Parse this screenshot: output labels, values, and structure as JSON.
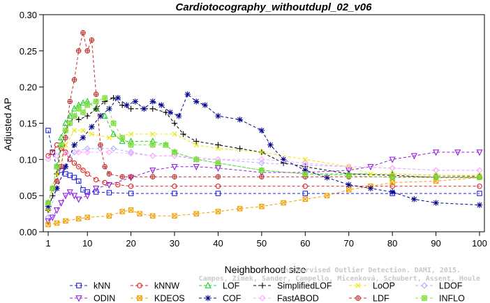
{
  "chart_data": {
    "type": "line",
    "title": "Cardiotocography_withoutdupl_02_v06",
    "xlabel": "Neighborhood size",
    "ylabel": "Adjusted AP",
    "xlim": [
      1,
      100
    ],
    "ylim": [
      0,
      0.3
    ],
    "x_ticks": [
      1,
      10,
      20,
      30,
      40,
      50,
      60,
      70,
      80,
      90,
      100
    ],
    "y_ticks": [
      "0.00",
      "0.05",
      "0.10",
      "0.15",
      "0.20",
      "0.25",
      "0.30"
    ],
    "grid": false,
    "legend_position": "bottom",
    "watermark": [
      "Campos, Zimek, Sander, Campello, Micenková, Schubert, Assent, Houle",
      "Unsupervised Outlier Detection. DAMI, 2015."
    ],
    "series": [
      {
        "name": "kNN",
        "color": "#2020e0",
        "marker": "square",
        "points": [
          [
            1,
            0.14
          ],
          [
            2,
            0.11
          ],
          [
            3,
            0.09
          ],
          [
            4,
            0.085
          ],
          [
            5,
            0.08
          ],
          [
            6,
            0.078
          ],
          [
            7,
            0.075
          ],
          [
            8,
            0.07
          ],
          [
            9,
            0.058
          ],
          [
            10,
            0.055
          ],
          [
            12,
            0.055
          ],
          [
            15,
            0.054
          ],
          [
            20,
            0.053
          ],
          [
            30,
            0.053
          ],
          [
            40,
            0.053
          ],
          [
            60,
            0.053
          ],
          [
            80,
            0.053
          ],
          [
            100,
            0.053
          ]
        ]
      },
      {
        "name": "kNNW",
        "color": "#e02020",
        "marker": "circle",
        "points": [
          [
            1,
            0.105
          ],
          [
            2,
            0.11
          ],
          [
            3,
            0.12
          ],
          [
            4,
            0.115
          ],
          [
            5,
            0.11
          ],
          [
            6,
            0.1
          ],
          [
            7,
            0.095
          ],
          [
            8,
            0.09
          ],
          [
            9,
            0.085
          ],
          [
            10,
            0.08
          ],
          [
            12,
            0.072
          ],
          [
            14,
            0.068
          ],
          [
            17,
            0.065
          ],
          [
            20,
            0.063
          ],
          [
            30,
            0.063
          ],
          [
            40,
            0.063
          ],
          [
            60,
            0.063
          ],
          [
            80,
            0.063
          ],
          [
            100,
            0.063
          ]
        ]
      },
      {
        "name": "LOF",
        "color": "#20d020",
        "marker": "triangle",
        "points": [
          [
            1,
            0.04
          ],
          [
            2,
            0.06
          ],
          [
            3,
            0.09
          ],
          [
            4,
            0.13
          ],
          [
            5,
            0.15
          ],
          [
            6,
            0.16
          ],
          [
            7,
            0.17
          ],
          [
            8,
            0.175
          ],
          [
            9,
            0.178
          ],
          [
            10,
            0.18
          ],
          [
            12,
            0.17
          ],
          [
            14,
            0.16
          ],
          [
            16,
            0.135
          ],
          [
            18,
            0.125
          ],
          [
            20,
            0.125
          ],
          [
            25,
            0.125
          ],
          [
            28,
            0.12
          ],
          [
            30,
            0.11
          ],
          [
            35,
            0.1
          ],
          [
            40,
            0.095
          ],
          [
            50,
            0.085
          ],
          [
            60,
            0.08
          ],
          [
            70,
            0.08
          ],
          [
            80,
            0.08
          ],
          [
            90,
            0.078
          ],
          [
            100,
            0.077
          ]
        ]
      },
      {
        "name": "SimplifiedLOF",
        "color": "#000000",
        "marker": "plus",
        "points": [
          [
            1,
            0.03
          ],
          [
            2,
            0.05
          ],
          [
            3,
            0.08
          ],
          [
            4,
            0.12
          ],
          [
            5,
            0.14
          ],
          [
            6,
            0.15
          ],
          [
            7,
            0.16
          ],
          [
            8,
            0.155
          ],
          [
            10,
            0.16
          ],
          [
            12,
            0.17
          ],
          [
            14,
            0.18
          ],
          [
            16,
            0.185
          ],
          [
            18,
            0.175
          ],
          [
            20,
            0.17
          ],
          [
            25,
            0.17
          ],
          [
            28,
            0.165
          ],
          [
            30,
            0.15
          ],
          [
            32,
            0.135
          ],
          [
            35,
            0.125
          ],
          [
            40,
            0.12
          ],
          [
            45,
            0.115
          ],
          [
            50,
            0.11
          ],
          [
            55,
            0.095
          ],
          [
            60,
            0.09
          ],
          [
            70,
            0.08
          ],
          [
            80,
            0.078
          ],
          [
            90,
            0.075
          ],
          [
            100,
            0.075
          ]
        ]
      },
      {
        "name": "LoOP",
        "color": "#e8e800",
        "marker": "x",
        "points": [
          [
            1,
            0.03
          ],
          [
            3,
            0.08
          ],
          [
            5,
            0.12
          ],
          [
            7,
            0.14
          ],
          [
            9,
            0.14
          ],
          [
            11,
            0.135
          ],
          [
            15,
            0.13
          ],
          [
            20,
            0.135
          ],
          [
            25,
            0.135
          ],
          [
            30,
            0.135
          ],
          [
            35,
            0.12
          ],
          [
            40,
            0.115
          ],
          [
            50,
            0.11
          ],
          [
            60,
            0.1
          ],
          [
            70,
            0.09
          ],
          [
            75,
            0.08
          ],
          [
            80,
            0.08
          ],
          [
            90,
            0.078
          ],
          [
            100,
            0.078
          ]
        ]
      },
      {
        "name": "LDOF",
        "color": "#b0b0ff",
        "marker": "diamond",
        "points": [
          [
            1,
            0.02
          ],
          [
            3,
            0.06
          ],
          [
            5,
            0.09
          ],
          [
            7,
            0.11
          ],
          [
            10,
            0.115
          ],
          [
            13,
            0.115
          ],
          [
            16,
            0.115
          ],
          [
            20,
            0.11
          ],
          [
            25,
            0.105
          ],
          [
            30,
            0.105
          ],
          [
            35,
            0.1
          ],
          [
            40,
            0.1
          ],
          [
            50,
            0.095
          ],
          [
            60,
            0.092
          ],
          [
            70,
            0.09
          ],
          [
            80,
            0.088
          ],
          [
            90,
            0.085
          ],
          [
            100,
            0.085
          ]
        ]
      },
      {
        "name": "ODIN",
        "color": "#9020e0",
        "marker": "triangle-down",
        "points": [
          [
            1,
            0.015
          ],
          [
            2,
            0.02
          ],
          [
            3,
            0.03
          ],
          [
            4,
            0.04
          ],
          [
            5,
            0.05
          ],
          [
            6,
            0.055
          ],
          [
            7,
            0.05
          ],
          [
            8,
            0.045
          ],
          [
            10,
            0.05
          ],
          [
            12,
            0.06
          ],
          [
            15,
            0.065
          ],
          [
            20,
            0.075
          ],
          [
            25,
            0.085
          ],
          [
            30,
            0.09
          ],
          [
            35,
            0.09
          ],
          [
            40,
            0.088
          ],
          [
            50,
            0.082
          ],
          [
            60,
            0.082
          ],
          [
            70,
            0.085
          ],
          [
            75,
            0.09
          ],
          [
            80,
            0.1
          ],
          [
            85,
            0.105
          ],
          [
            90,
            0.11
          ],
          [
            95,
            0.11
          ],
          [
            100,
            0.11
          ]
        ]
      },
      {
        "name": "KDEOS",
        "color": "#f0a000",
        "marker": "square-x",
        "points": [
          [
            1,
            0.01
          ],
          [
            3,
            0.012
          ],
          [
            5,
            0.015
          ],
          [
            8,
            0.018
          ],
          [
            10,
            0.02
          ],
          [
            15,
            0.022
          ],
          [
            18,
            0.028
          ],
          [
            20,
            0.03
          ],
          [
            22,
            0.025
          ],
          [
            25,
            0.022
          ],
          [
            30,
            0.022
          ],
          [
            35,
            0.025
          ],
          [
            40,
            0.028
          ],
          [
            45,
            0.032
          ],
          [
            50,
            0.035
          ],
          [
            55,
            0.04
          ],
          [
            60,
            0.045
          ],
          [
            65,
            0.05
          ],
          [
            70,
            0.058
          ],
          [
            75,
            0.063
          ],
          [
            80,
            0.068
          ],
          [
            90,
            0.07
          ],
          [
            100,
            0.075
          ]
        ]
      },
      {
        "name": "COF",
        "color": "#000090",
        "marker": "asterisk",
        "points": [
          [
            1,
            0.035
          ],
          [
            3,
            0.06
          ],
          [
            5,
            0.09
          ],
          [
            7,
            0.12
          ],
          [
            9,
            0.13
          ],
          [
            11,
            0.145
          ],
          [
            13,
            0.16
          ],
          [
            15,
            0.17
          ],
          [
            17,
            0.185
          ],
          [
            19,
            0.175
          ],
          [
            21,
            0.18
          ],
          [
            23,
            0.17
          ],
          [
            25,
            0.18
          ],
          [
            27,
            0.175
          ],
          [
            29,
            0.165
          ],
          [
            31,
            0.16
          ],
          [
            33,
            0.19
          ],
          [
            35,
            0.18
          ],
          [
            37,
            0.175
          ],
          [
            40,
            0.16
          ],
          [
            45,
            0.155
          ],
          [
            50,
            0.14
          ],
          [
            52,
            0.12
          ],
          [
            55,
            0.1
          ],
          [
            60,
            0.085
          ],
          [
            65,
            0.075
          ],
          [
            70,
            0.065
          ],
          [
            75,
            0.06
          ],
          [
            80,
            0.055
          ],
          [
            85,
            0.045
          ],
          [
            90,
            0.04
          ],
          [
            100,
            0.037
          ]
        ]
      },
      {
        "name": "FastABOD",
        "color": "#ffaaff",
        "marker": "diamond",
        "points": [
          [
            1,
            0.1
          ],
          [
            3,
            0.105
          ],
          [
            5,
            0.108
          ],
          [
            8,
            0.11
          ],
          [
            10,
            0.11
          ],
          [
            15,
            0.11
          ],
          [
            20,
            0.108
          ],
          [
            25,
            0.105
          ],
          [
            30,
            0.105
          ],
          [
            40,
            0.1
          ],
          [
            50,
            0.1
          ],
          [
            60,
            0.095
          ],
          [
            70,
            0.09
          ],
          [
            80,
            0.088
          ],
          [
            90,
            0.085
          ],
          [
            100,
            0.085
          ]
        ]
      },
      {
        "name": "LDF",
        "color": "#c03030",
        "marker": "circle-plus",
        "points": [
          [
            1,
            0.04
          ],
          [
            2,
            0.06
          ],
          [
            3,
            0.07
          ],
          [
            4,
            0.09
          ],
          [
            5,
            0.13
          ],
          [
            6,
            0.18
          ],
          [
            7,
            0.21
          ],
          [
            8,
            0.25
          ],
          [
            9,
            0.275
          ],
          [
            10,
            0.25
          ],
          [
            11,
            0.265
          ],
          [
            12,
            0.19
          ],
          [
            13,
            0.12
          ],
          [
            14,
            0.09
          ],
          [
            15,
            0.08
          ],
          [
            18,
            0.076
          ],
          [
            20,
            0.076
          ],
          [
            25,
            0.076
          ],
          [
            30,
            0.076
          ],
          [
            40,
            0.076
          ],
          [
            50,
            0.076
          ],
          [
            60,
            0.076
          ],
          [
            70,
            0.076
          ],
          [
            80,
            0.076
          ],
          [
            90,
            0.076
          ],
          [
            100,
            0.076
          ]
        ]
      },
      {
        "name": "INFLO",
        "color": "#80e040",
        "marker": "star",
        "points": [
          [
            1,
            0.04
          ],
          [
            2,
            0.06
          ],
          [
            3,
            0.09
          ],
          [
            4,
            0.12
          ],
          [
            5,
            0.14
          ],
          [
            6,
            0.15
          ],
          [
            7,
            0.16
          ],
          [
            8,
            0.17
          ],
          [
            9,
            0.165
          ],
          [
            10,
            0.175
          ],
          [
            12,
            0.18
          ],
          [
            14,
            0.185
          ],
          [
            16,
            0.15
          ],
          [
            18,
            0.13
          ],
          [
            20,
            0.12
          ],
          [
            25,
            0.12
          ],
          [
            28,
            0.12
          ],
          [
            30,
            0.11
          ],
          [
            35,
            0.1
          ],
          [
            40,
            0.095
          ],
          [
            50,
            0.085
          ],
          [
            60,
            0.08
          ],
          [
            70,
            0.078
          ],
          [
            80,
            0.075
          ],
          [
            90,
            0.075
          ],
          [
            100,
            0.075
          ]
        ]
      }
    ]
  }
}
